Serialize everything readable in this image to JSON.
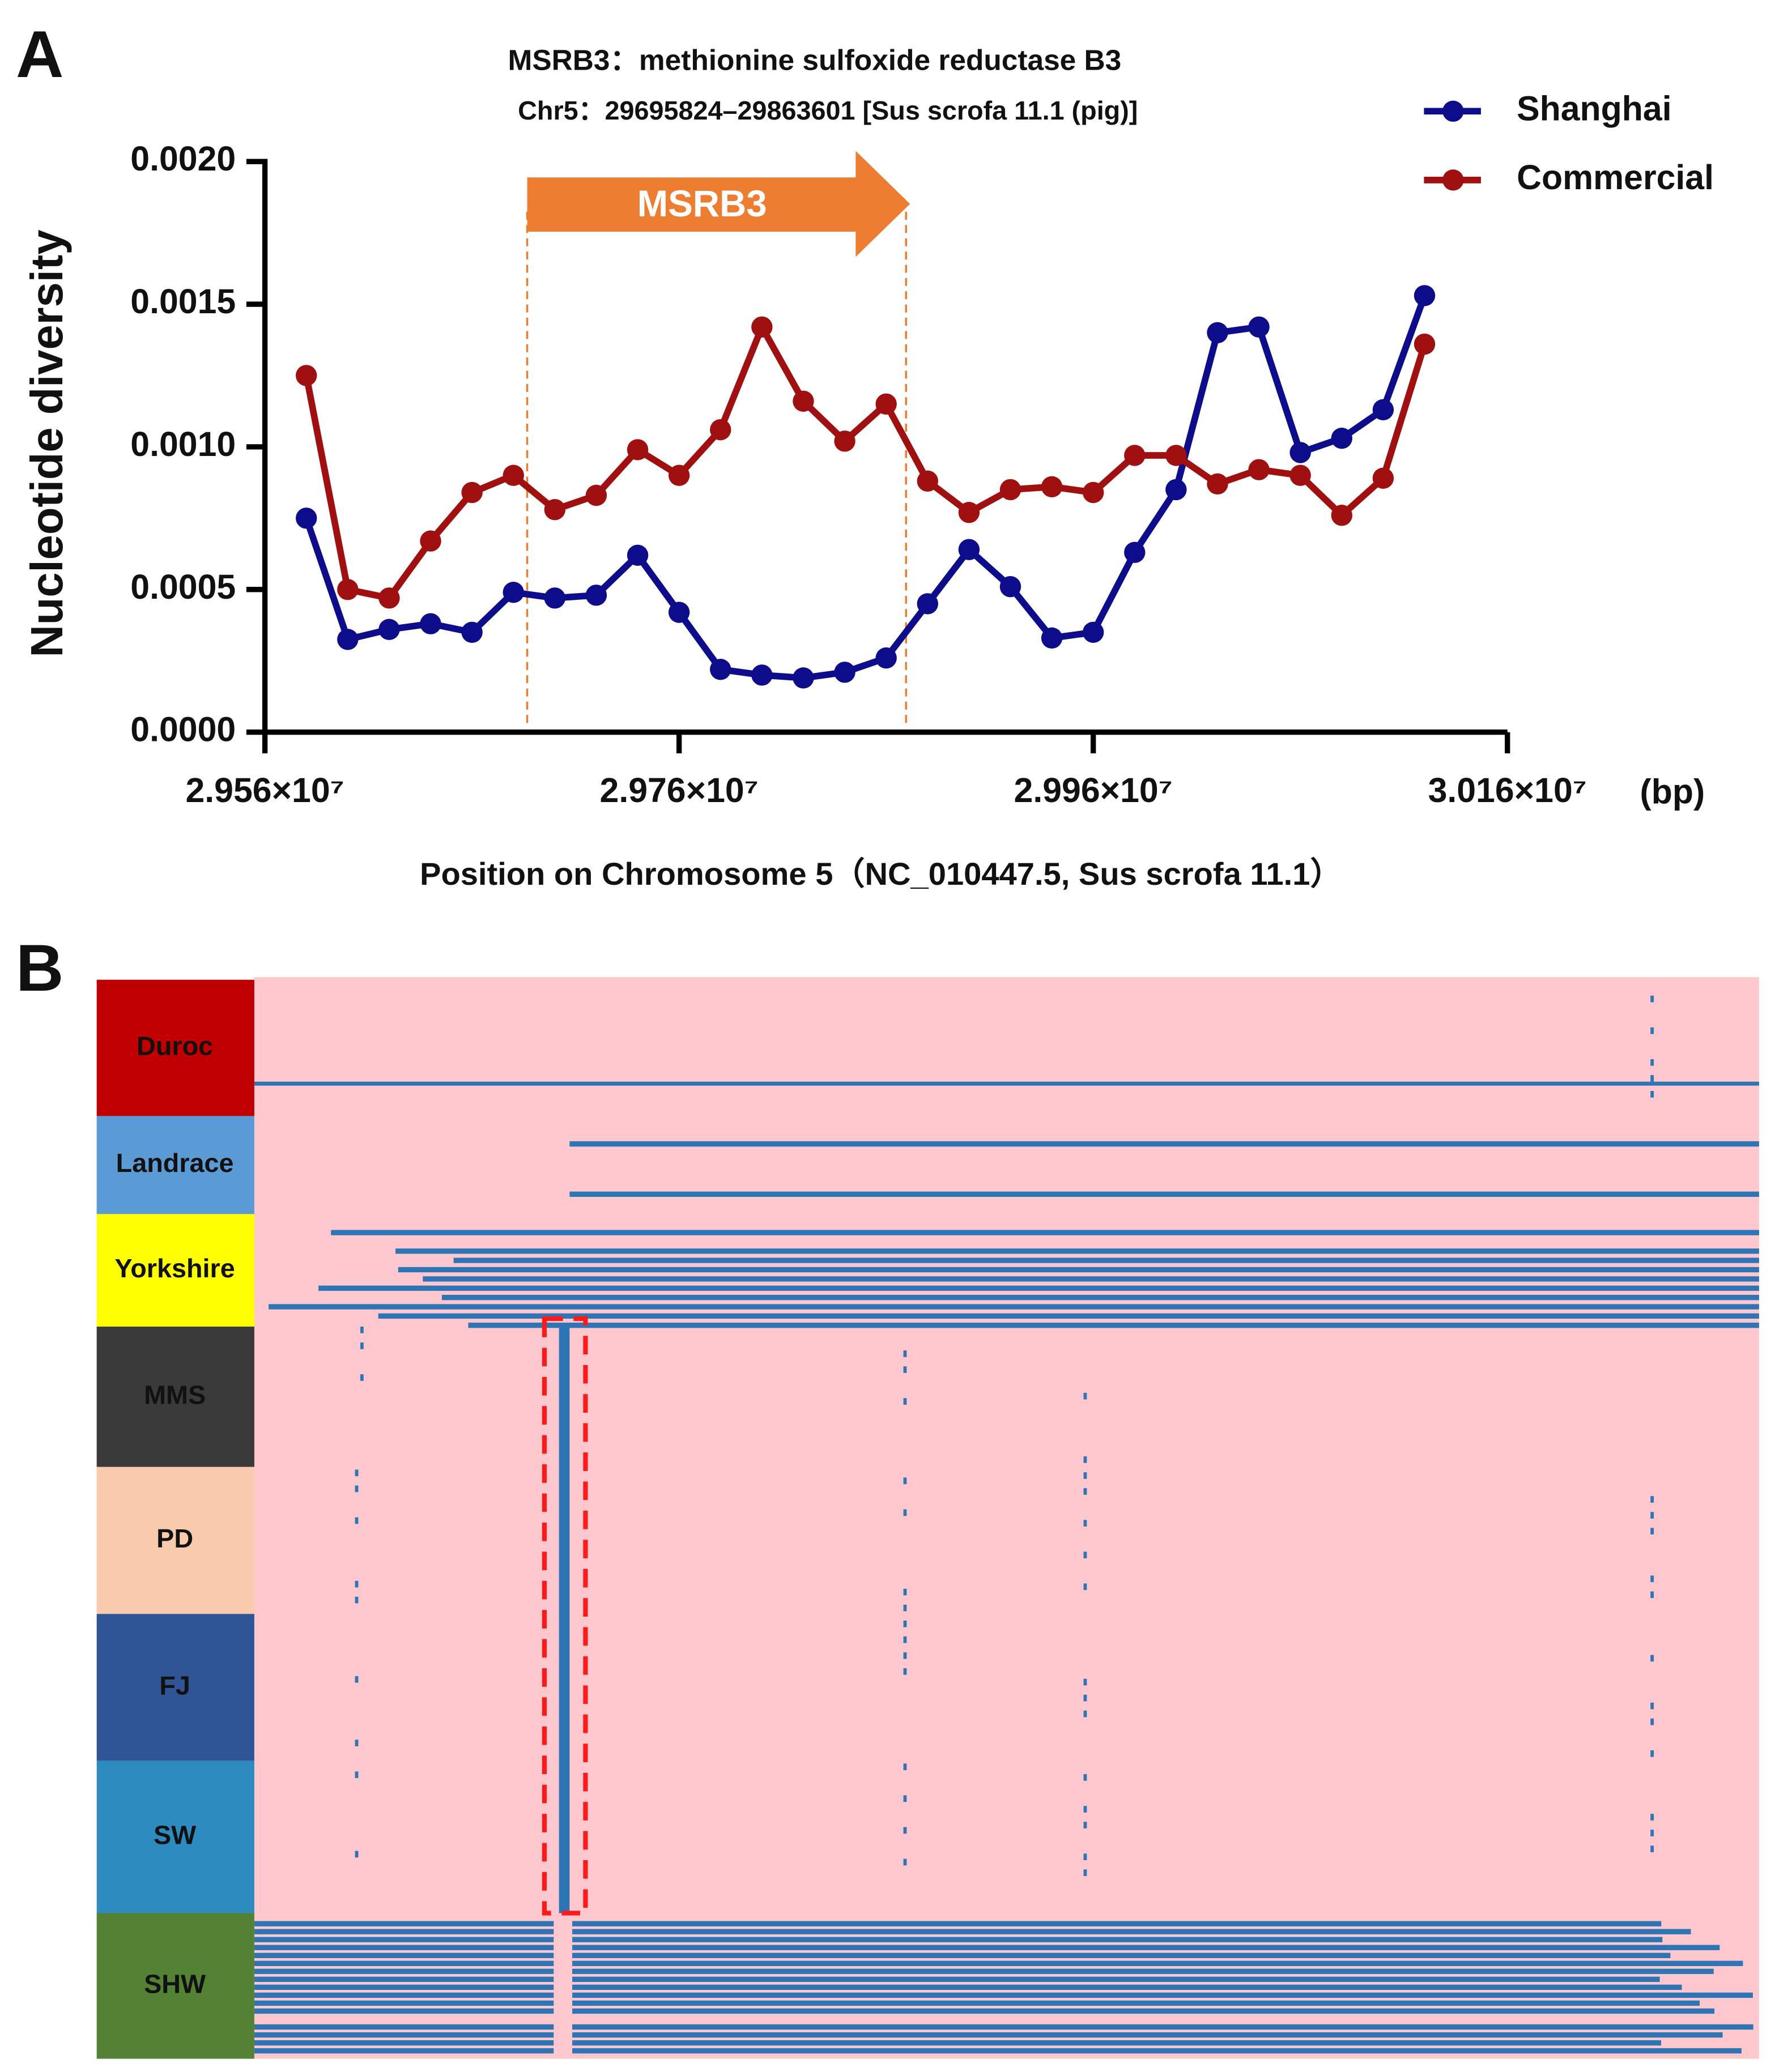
{
  "panel_labels": [
    "A",
    "B"
  ],
  "chart_data": {
    "type": "line",
    "title": "MSRB3：methionine sulfoxide reductase B3",
    "subtitle": "Chr5：29695824–29863601 [Sus scrofa 11.1 (pig)]",
    "x_label": "Position on Chromosome 5（NC_010447.5, Sus scrofa 11.1）",
    "x_unit": "(bp)",
    "y_label": "Nucleotide diversity",
    "annotation": "MSRB3",
    "legend": "upper right",
    "x": [
      29580000,
      29600000,
      29620000,
      29640000,
      29660000,
      29680000,
      29700000,
      29720000,
      29740000,
      29760000,
      29780000,
      29800000,
      29820000,
      29840000,
      29860000,
      29880000,
      29900000,
      29920000,
      29940000,
      29960000,
      29980000,
      30000000,
      30020000,
      30040000,
      30060000,
      30080000,
      30100000,
      30120000
    ],
    "series": [
      {
        "name": "Shanghai",
        "color": "#0d0d8c",
        "values": [
          0.00075,
          0.000325,
          0.00036,
          0.00038,
          0.00035,
          0.00049,
          0.00047,
          0.00048,
          0.00062,
          0.00042,
          0.00022,
          0.0002,
          0.00019,
          0.00021,
          0.00026,
          0.00045,
          0.00064,
          0.00051,
          0.00033,
          0.00035,
          0.00063,
          0.00085,
          0.0014,
          0.00142,
          0.00098,
          0.00103,
          0.00113,
          0.00153
        ]
      },
      {
        "name": "Commercial",
        "color": "#a01010",
        "values": [
          0.00125,
          0.0005,
          0.00047,
          0.00067,
          0.00084,
          0.0009,
          0.00078,
          0.00083,
          0.00099,
          0.0009,
          0.00106,
          0.00142,
          0.00116,
          0.00102,
          0.00115,
          0.00088,
          0.00077,
          0.00085,
          0.00086,
          0.00084,
          0.00097,
          0.00097,
          0.00087,
          0.00092,
          0.0009,
          0.00076,
          0.00089,
          0.00136
        ]
      }
    ],
    "xlim": [
      29560000,
      30160000
    ],
    "xticks": [
      {
        "value": 29560000,
        "label": "2.956×10⁷"
      },
      {
        "value": 29760000,
        "label": "2.976×10⁷"
      },
      {
        "value": 29960000,
        "label": "2.996×10⁷"
      },
      {
        "value": 30160000,
        "label": "3.016×10⁷"
      }
    ],
    "ylim": [
      0,
      0.002
    ],
    "yticks": [
      {
        "value": 0,
        "label": "0.0000"
      },
      {
        "value": 0.0005,
        "label": "0.0005"
      },
      {
        "value": 0.001,
        "label": "0.0010"
      },
      {
        "value": 0.0015,
        "label": "0.0015"
      },
      {
        "value": 0.002,
        "label": "0.0020"
      }
    ]
  },
  "heatmap": {
    "groups": [
      {
        "name": "Duroc",
        "color": "#c00000"
      },
      {
        "name": "Landrace",
        "color": "#5b9bd5"
      },
      {
        "name": "Yorkshire",
        "color": "#ffff00"
      },
      {
        "name": "MMS",
        "color": "#3a3a3a"
      },
      {
        "name": "PD",
        "color": "#f8cbad"
      },
      {
        "name": "FJ",
        "color": "#2f5597"
      },
      {
        "name": "SW",
        "color": "#2e8bc0"
      },
      {
        "name": "SHW",
        "color": "#548235"
      }
    ]
  }
}
